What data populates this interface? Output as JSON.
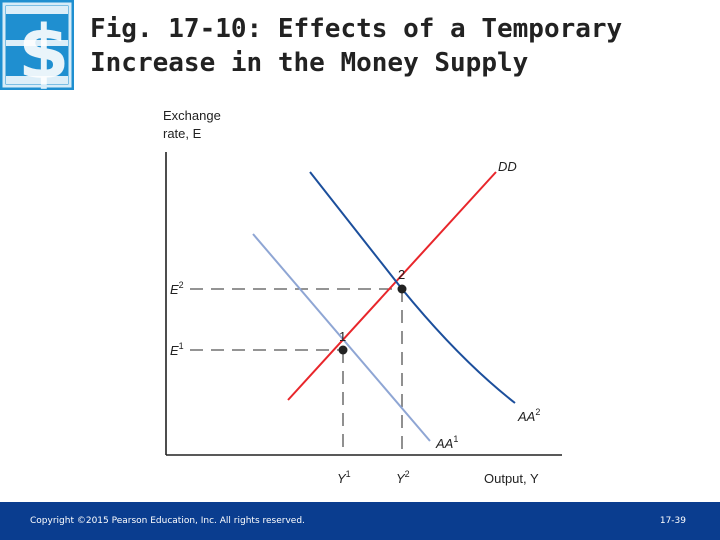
{
  "slide": {
    "title_line1": "Fig. 17-10: Effects of a Temporary",
    "title_line2": "Increase in the Money Supply",
    "logo_icon": "dollar-sign-icon",
    "copyright": "Copyright ©2015 Pearson Education, Inc. All rights reserved.",
    "page_number": "17-39"
  },
  "diagram": {
    "y_axis_label_line1": "Exchange",
    "y_axis_label_line2": "rate, E",
    "x_axis_label": "Output, Y",
    "curves": {
      "dd": "DD",
      "aa1": "AA",
      "aa1_sup": "1",
      "aa2": "AA",
      "aa2_sup": "2"
    },
    "points": {
      "p1": "1",
      "p2": "2"
    },
    "ticks": {
      "e1": "E",
      "e1_sup": "1",
      "e2": "E",
      "e2_sup": "2",
      "y1": "Y",
      "y1_sup": "1",
      "y2": "Y",
      "y2_sup": "2"
    },
    "colors": {
      "dd": "#e8262b",
      "aa1": "#8fa6d4",
      "aa2": "#1c4f9c",
      "axis": "#222222",
      "dashed": "#555555",
      "footer": "#0a3d8f"
    }
  }
}
